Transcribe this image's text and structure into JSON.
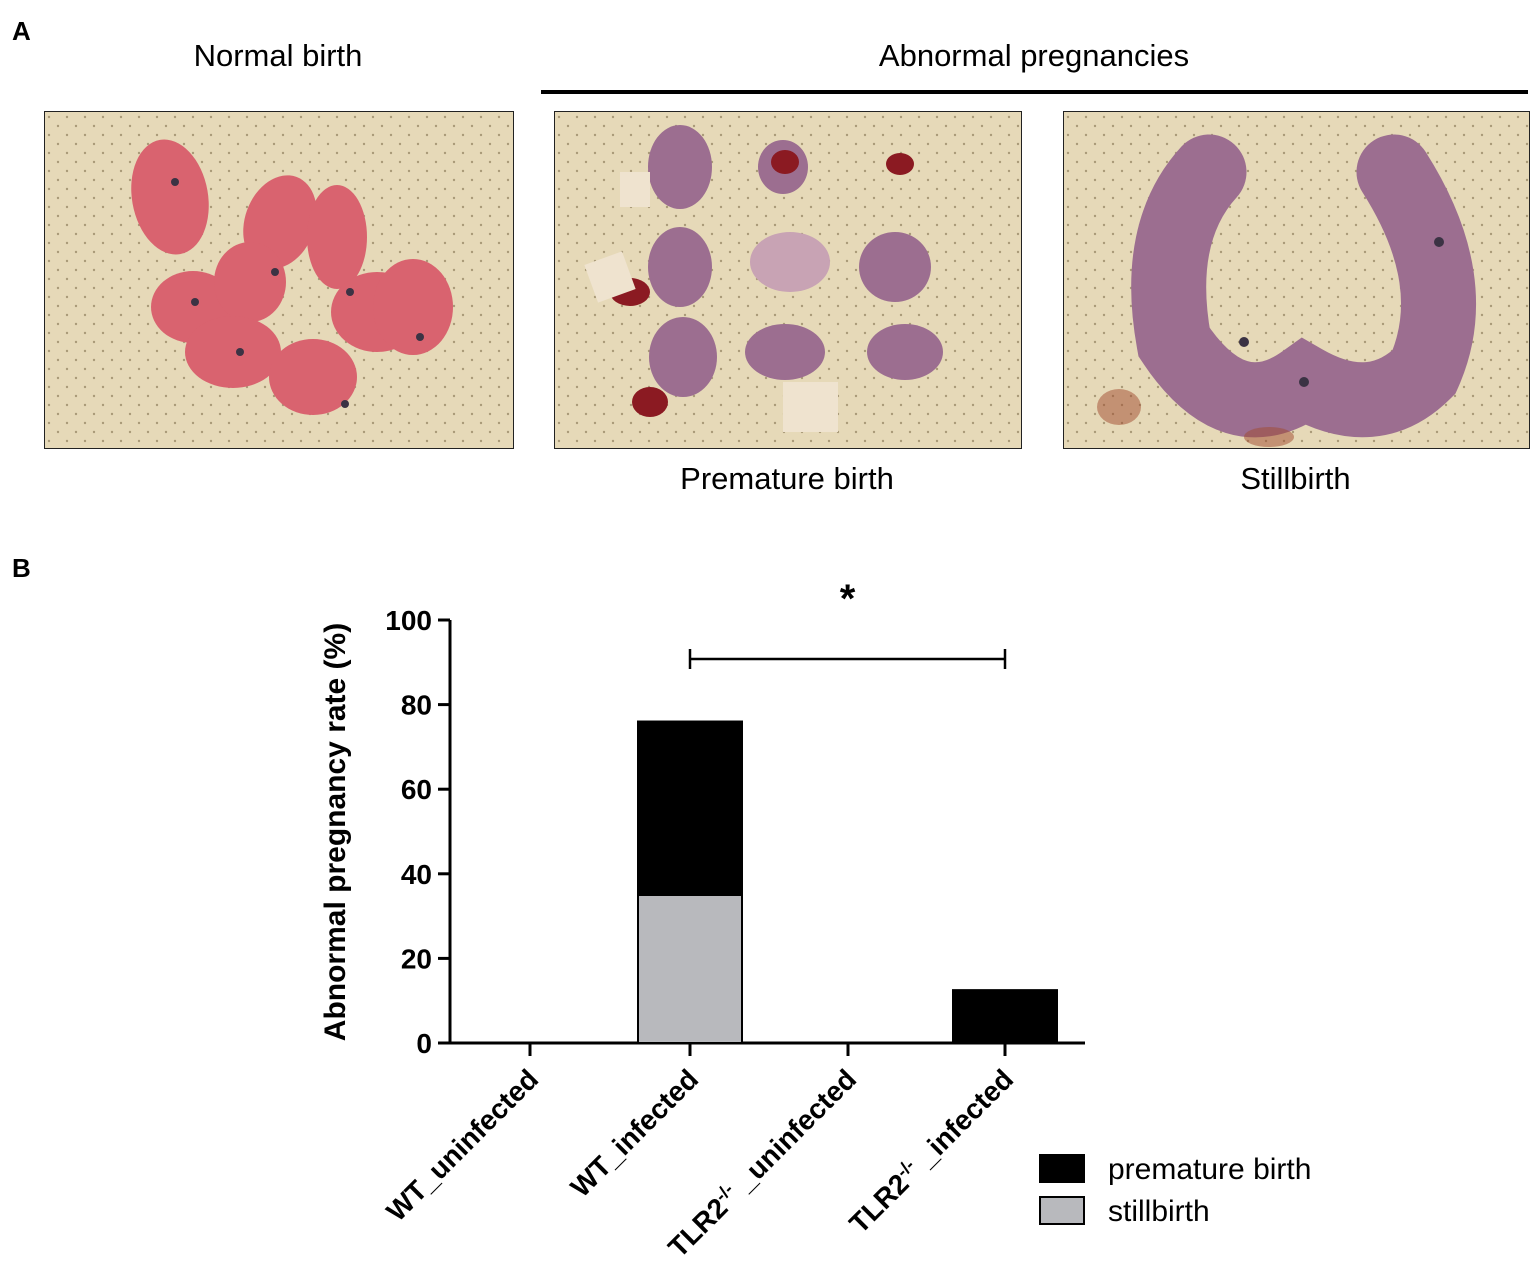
{
  "panels": {
    "a_letter": "A",
    "b_letter": "B"
  },
  "panel_a": {
    "left_caption": "Normal birth",
    "group_caption": "Abnormal pregnancies",
    "middle_caption": "Premature birth",
    "right_caption": "Stillbirth",
    "photo_background": "#e6d9b8",
    "pup_color_normal": "#d9636f",
    "pup_color_abnormal": "#9c6e90"
  },
  "chart_data": {
    "type": "bar",
    "stacked": true,
    "ylabel": "Abnormal pregnancy rate (%)",
    "ylim": [
      0,
      100
    ],
    "yticks": [
      0,
      20,
      40,
      60,
      80,
      100
    ],
    "categories": [
      {
        "main": "WT_uninfected",
        "sup": "",
        "tail": ""
      },
      {
        "main": "WT_infected",
        "sup": "",
        "tail": ""
      },
      {
        "main": "TLR2",
        "sup": "-/-",
        "tail": " _uninfected"
      },
      {
        "main": "TLR2",
        "sup": "-/-",
        "tail": " _infected"
      }
    ],
    "series": [
      {
        "name": "stillbirth",
        "color": "#b8b9bd",
        "values": [
          0,
          35,
          0,
          0
        ]
      },
      {
        "name": "premature birth",
        "color": "#000000",
        "values": [
          0,
          41,
          0,
          12.5
        ]
      }
    ],
    "significance": {
      "label": "*",
      "from": 1,
      "to": 3
    },
    "legend_position": "bottom-right"
  }
}
